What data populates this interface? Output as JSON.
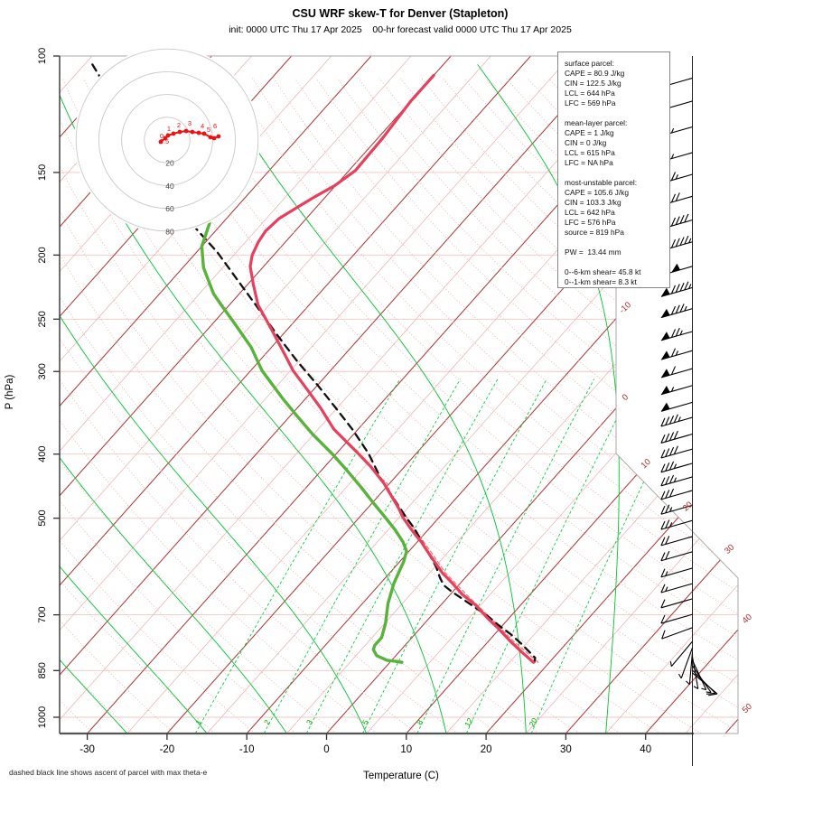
{
  "title": "CSU WRF skew-T for Denver (Stapleton)",
  "subtitle": "init: 0000 UTC Thu 17 Apr 2025    00-hr forecast valid 0000 UTC Thu 17 Apr 2025",
  "footnote": "dashed black line shows ascent of parcel with max theta-e",
  "axes": {
    "x_label": "Temperature (C)",
    "y_label": "P (hPa)",
    "x_ticks": [
      -30,
      -20,
      -10,
      0,
      10,
      20,
      30,
      40
    ],
    "y_ticks": [
      100,
      150,
      200,
      250,
      300,
      400,
      500,
      700,
      850,
      1000
    ]
  },
  "info_box": {
    "lines": [
      "surface parcel:",
      "CAPE = 80.9 J/kg",
      "CIN = 122.5 J/kg",
      "LCL = 644 hPa",
      "LFC = 569 hPa",
      "",
      "mean-layer parcel:",
      "CAPE = 1 J/kg",
      "CIN = 0 J/kg",
      "LCL = 615 hPa",
      "LFC = NA hPa",
      "",
      "most-unstable parcel:",
      "CAPE = 105.6 J/kg",
      "CIN = 103.3 J/kg",
      "LCL = 642 hPa",
      "LFC = 576 hPa",
      "source = 819 hPa",
      "",
      "PW =  13.44 mm",
      "",
      "0--6-km shear= 45.8 kt",
      "0--1-km shear= 8.3 kt"
    ]
  },
  "colors": {
    "temperature": "#e5405e",
    "dewpoint": "#58b23c",
    "parcel_dashed": "#111111",
    "parcel_surface_dashed": "#f87878",
    "isotherm_major": "#b03030",
    "isotherm_minor": "#f0b6b6",
    "dry_adiabat": "#eeb6ae",
    "moist_adiabat": "#00c432",
    "mixing_ratio": "#00d23c",
    "isobar": "#f3c6c6",
    "boundary": "#aaaaaa",
    "axis": "#333333",
    "hodo_ring": "#c9c9c9",
    "hodo_ring_label": "#444444",
    "hodo_trace": "#ee1111",
    "barb": "#000000"
  },
  "chart_data": {
    "type": "skew-t",
    "station": "Denver (Stapleton)",
    "model": "CSU WRF",
    "pressure_range_hPa": [
      100,
      1050
    ],
    "temperature_profile": {
      "units": [
        "hPa",
        "C"
      ],
      "points": [
        [
          107,
          -60.0
        ],
        [
          117,
          -60.0
        ],
        [
          133,
          -59.4
        ],
        [
          149,
          -59.2
        ],
        [
          157,
          -60.1
        ],
        [
          163,
          -61.3
        ],
        [
          169,
          -62.3
        ],
        [
          176,
          -63.4
        ],
        [
          184,
          -63.7
        ],
        [
          191,
          -63.4
        ],
        [
          200,
          -62.7
        ],
        [
          208,
          -61.7
        ],
        [
          222,
          -59.2
        ],
        [
          238,
          -56.4
        ],
        [
          257,
          -52.4
        ],
        [
          284,
          -47.3
        ],
        [
          299,
          -44.7
        ],
        [
          320,
          -40.7
        ],
        [
          341,
          -37.0
        ],
        [
          367,
          -33.0
        ],
        [
          399,
          -27.3
        ],
        [
          418,
          -24.2
        ],
        [
          443,
          -20.7
        ],
        [
          482,
          -16.2
        ],
        [
          499,
          -14.5
        ],
        [
          515,
          -12.7
        ],
        [
          530,
          -11.0
        ],
        [
          543,
          -9.5
        ],
        [
          564,
          -7.4
        ],
        [
          579,
          -5.9
        ],
        [
          605,
          -3.4
        ],
        [
          626,
          -1.1
        ],
        [
          652,
          1.5
        ],
        [
          677,
          4.4
        ],
        [
          708,
          7.3
        ],
        [
          737,
          10.1
        ],
        [
          768,
          12.8
        ],
        [
          797,
          15.4
        ],
        [
          826,
          18.0
        ]
      ]
    },
    "dewpoint_profile": {
      "units": [
        "hPa",
        "C"
      ],
      "points": [
        [
          179,
          -71.6
        ],
        [
          194,
          -70.0
        ],
        [
          209,
          -67.4
        ],
        [
          229,
          -63.2
        ],
        [
          238,
          -61.0
        ],
        [
          255,
          -57.0
        ],
        [
          276,
          -52.5
        ],
        [
          299,
          -48.6
        ],
        [
          330,
          -42.8
        ],
        [
          351,
          -39.0
        ],
        [
          374,
          -35.0
        ],
        [
          399,
          -30.6
        ],
        [
          422,
          -27.0
        ],
        [
          450,
          -23.0
        ],
        [
          473,
          -20.0
        ],
        [
          499,
          -16.7
        ],
        [
          521,
          -14.1
        ],
        [
          543,
          -11.8
        ],
        [
          561,
          -10.3
        ],
        [
          582,
          -9.5
        ],
        [
          597,
          -9.1
        ],
        [
          628,
          -8.3
        ],
        [
          673,
          -6.8
        ],
        [
          721,
          -4.9
        ],
        [
          758,
          -3.8
        ],
        [
          778,
          -3.8
        ],
        [
          790,
          -3.5
        ],
        [
          807,
          -2.4
        ],
        [
          820,
          -0.6
        ],
        [
          823,
          0.6
        ],
        [
          826,
          1.5
        ]
      ]
    },
    "parcel_max_thetae": {
      "units": [
        "hPa",
        "C"
      ],
      "points": [
        [
          103,
          -104.0
        ],
        [
          112,
          -99.5
        ],
        [
          131,
          -92.1
        ],
        [
          145,
          -86.2
        ],
        [
          163,
          -79.3
        ],
        [
          181,
          -73.2
        ],
        [
          198,
          -67.4
        ],
        [
          218,
          -61.8
        ],
        [
          240,
          -56.2
        ],
        [
          264,
          -50.7
        ],
        [
          290,
          -45.1
        ],
        [
          315,
          -39.9
        ],
        [
          341,
          -35.1
        ],
        [
          367,
          -30.7
        ],
        [
          399,
          -26.0
        ],
        [
          436,
          -21.6
        ],
        [
          467,
          -17.8
        ],
        [
          499,
          -14.1
        ],
        [
          518,
          -11.9
        ],
        [
          540,
          -9.7
        ],
        [
          557,
          -8.1
        ],
        [
          575,
          -6.4
        ],
        [
          593,
          -4.8
        ],
        [
          616,
          -3.1
        ],
        [
          632,
          -1.8
        ],
        [
          646,
          -0.1
        ],
        [
          662,
          2.0
        ],
        [
          681,
          4.4
        ],
        [
          703,
          7.1
        ],
        [
          726,
          9.5
        ],
        [
          749,
          12.0
        ],
        [
          773,
          14.3
        ],
        [
          813,
          17.7
        ],
        [
          826,
          18.1
        ]
      ]
    },
    "parcel_surface": {
      "units": [
        "hPa",
        "C"
      ],
      "points": [
        [
          826,
          18.6
        ],
        [
          768,
          13.2
        ],
        [
          708,
          7.7
        ],
        [
          652,
          2.0
        ],
        [
          605,
          -3.0
        ],
        [
          564,
          -7.0
        ],
        [
          530,
          -10.6
        ],
        [
          499,
          -14.0
        ],
        [
          467,
          -18.0
        ],
        [
          443,
          -20.3
        ],
        [
          425,
          -23.3
        ],
        [
          418,
          -24.0
        ]
      ]
    },
    "wind_barbs": {
      "units": [
        "hPa",
        "kt",
        "staff_angle_deg"
      ],
      "points": [
        [
          108,
          50,
          164
        ],
        [
          117,
          50,
          164
        ],
        [
          128,
          55,
          164
        ],
        [
          140,
          55,
          164
        ],
        [
          151,
          65,
          164
        ],
        [
          163,
          70,
          164
        ],
        [
          177,
          90,
          164
        ],
        [
          191,
          95,
          164
        ],
        [
          208,
          100,
          164
        ],
        [
          224,
          95,
          164
        ],
        [
          241,
          85,
          164
        ],
        [
          261,
          75,
          164
        ],
        [
          279,
          65,
          164
        ],
        [
          297,
          60,
          164
        ],
        [
          315,
          55,
          164
        ],
        [
          334,
          50,
          164
        ],
        [
          352,
          45,
          164
        ],
        [
          373,
          40,
          164
        ],
        [
          393,
          40,
          164
        ],
        [
          413,
          35,
          164
        ],
        [
          433,
          35,
          164
        ],
        [
          454,
          30,
          164
        ],
        [
          478,
          25,
          164
        ],
        [
          504,
          25,
          164
        ],
        [
          533,
          20,
          164
        ],
        [
          562,
          20,
          164
        ],
        [
          595,
          15,
          164
        ],
        [
          628,
          15,
          164
        ],
        [
          662,
          10,
          164
        ],
        [
          699,
          10,
          164
        ],
        [
          732,
          10,
          160
        ],
        [
          768,
          5,
          130
        ],
        [
          785,
          5,
          110
        ],
        [
          797,
          5,
          95
        ],
        [
          810,
          5,
          80
        ],
        [
          820,
          5,
          65
        ],
        [
          836,
          5,
          55
        ],
        [
          849,
          10,
          45
        ],
        [
          857,
          10,
          40
        ]
      ]
    },
    "hodograph": {
      "rings_kt": [
        20,
        40,
        60,
        80
      ],
      "trace_uv_kt": [
        [
          -5.6,
          -1.6
        ],
        [
          -1.6,
          1.6
        ],
        [
          0.8,
          4.0
        ],
        [
          5.6,
          5.6
        ],
        [
          11.1,
          7.1
        ],
        [
          16.7,
          7.9
        ],
        [
          22.2,
          7.1
        ],
        [
          27.8,
          6.3
        ],
        [
          32.5,
          5.6
        ],
        [
          38.1,
          2.4
        ],
        [
          41.3,
          1.6
        ],
        [
          45.2,
          3.2
        ]
      ],
      "height_labels_km": [
        {
          "label": "0",
          "u": -4.8,
          "v": 1.6
        },
        {
          "label": "0.5",
          "u": -2.4,
          "v": -3.2
        },
        {
          "label": "1",
          "u": 1.6,
          "v": 7.9
        },
        {
          "label": "2",
          "u": 10.3,
          "v": 11.1
        },
        {
          "label": "3",
          "u": 19.8,
          "v": 12.7
        },
        {
          "label": "4",
          "u": 31.0,
          "v": 10.3
        },
        {
          "label": "5",
          "u": 36.5,
          "v": 7.1
        },
        {
          "label": "6",
          "u": 42.1,
          "v": 10.3
        }
      ]
    },
    "isotherm_labels_C": [
      -10,
      0,
      10,
      20,
      30,
      40,
      50
    ],
    "mixing_ratio_lines_gkg": [
      1,
      2,
      3,
      5,
      8,
      12,
      20
    ],
    "isobar_lines_hPa": [
      150,
      200,
      250,
      300,
      400,
      500,
      700,
      850,
      1000
    ],
    "moist_adiabat_starts_C": [
      -35,
      -25,
      -15,
      -5,
      5,
      15,
      25,
      35
    ],
    "dry_adiabat_theta_K": {
      "min": 230,
      "max": 450,
      "step": 5
    },
    "isotherms_C": {
      "min": -110,
      "max": 50,
      "step": 5,
      "major_every": 10
    }
  }
}
